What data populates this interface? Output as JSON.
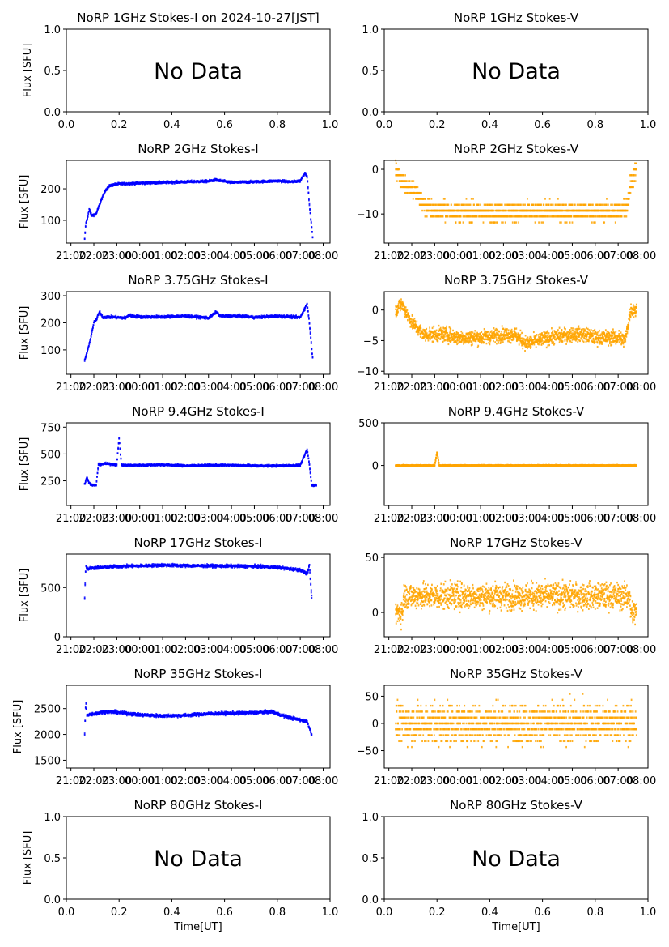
{
  "chart_data": {
    "type": "scatter",
    "figure": "NoRP daily quick-look",
    "date_label": "2024-10-27[JST]",
    "colors": {
      "stokes_i": "#0000ff",
      "stokes_v": "#ffa500",
      "axes": "#000000"
    },
    "time_ticks": [
      "21:00",
      "22:00",
      "23:00",
      "00:00",
      "01:00",
      "02:00",
      "03:00",
      "04:00",
      "05:00",
      "06:00",
      "07:00",
      "08:00"
    ],
    "time_range_hours": [
      -3.2,
      8.3
    ],
    "xlabel": "Time[UT]",
    "ylabel": "Flux [SFU]",
    "panels": [
      {
        "row": 0,
        "col": 0,
        "title": "NoRP 1GHz Stokes-I on 2024-10-27[JST]",
        "kind": "I",
        "nodata": true,
        "nodata_text": "No Data",
        "ylim": [
          0,
          1
        ],
        "yticks": [
          "0.0",
          "0.5",
          "1.0"
        ],
        "xticks": [
          "0.0",
          "0.2",
          "0.4",
          "0.6",
          "0.8",
          "1.0"
        ],
        "ylabel": "Flux [SFU]"
      },
      {
        "row": 0,
        "col": 1,
        "title": "NoRP 1GHz Stokes-V",
        "kind": "V",
        "nodata": true,
        "nodata_text": "No Data",
        "ylim": [
          0,
          1
        ],
        "yticks": [
          "0.0",
          "0.5",
          "1.0"
        ],
        "xticks": [
          "0.0",
          "0.2",
          "0.4",
          "0.6",
          "0.8",
          "1.0"
        ]
      },
      {
        "row": 1,
        "col": 0,
        "title": "NoRP 2GHz Stokes-I",
        "kind": "I",
        "ylim": [
          28,
          290
        ],
        "yticks": [
          "100",
          "200"
        ],
        "ytick_values": [
          100,
          200
        ],
        "ylabel": "Flux [SFU]",
        "t": [
          -2.4,
          -2.35,
          -2.3,
          -2.2,
          -2.1,
          -1.9,
          -1.7,
          -1.5,
          -1.3,
          -1.0,
          0,
          1,
          2,
          3,
          3.3,
          4,
          5,
          6,
          6.6,
          7.0,
          7.2,
          7.3,
          7.4,
          7.55
        ],
        "y": [
          40,
          90,
          100,
          135,
          115,
          120,
          160,
          195,
          210,
          215,
          218,
          220,
          222,
          224,
          228,
          220,
          222,
          225,
          222,
          225,
          250,
          240,
          150,
          40
        ],
        "spread": 6
      },
      {
        "row": 1,
        "col": 1,
        "title": "NoRP 2GHz Stokes-V",
        "kind": "V",
        "ylim": [
          -16.5,
          2
        ],
        "yticks": [
          "−10",
          "0"
        ],
        "ytick_values": [
          -10,
          0
        ],
        "t": [
          -2.7,
          -2.4,
          -2.0,
          -1.6,
          -1.2,
          0,
          2,
          4,
          6,
          7.0,
          7.4,
          7.55,
          7.8
        ],
        "y": [
          0,
          -3,
          -4,
          -7,
          -9,
          -9.5,
          -9.5,
          -9.5,
          -9.5,
          -9.5,
          -8,
          -3,
          0
        ],
        "spread": 3.5,
        "banded": true
      },
      {
        "row": 2,
        "col": 0,
        "title": "NoRP 3.75GHz Stokes-I",
        "kind": "I",
        "ylim": [
          10,
          315
        ],
        "yticks": [
          "100",
          "200",
          "300"
        ],
        "ytick_values": [
          100,
          200,
          300
        ],
        "ylabel": "Flux [SFU]",
        "t": [
          -2.4,
          -2.2,
          -2.0,
          -1.9,
          -1.75,
          -1.6,
          -1.4,
          -0.6,
          -0.5,
          0,
          1,
          2,
          3,
          3.35,
          3.5,
          4.4,
          5,
          6,
          7.0,
          7.3,
          7.4,
          7.55
        ],
        "y": [
          60,
          120,
          200,
          210,
          240,
          220,
          222,
          218,
          228,
          222,
          222,
          225,
          218,
          240,
          225,
          225,
          220,
          225,
          220,
          270,
          200,
          60
        ],
        "spread": 8
      },
      {
        "row": 2,
        "col": 1,
        "title": "NoRP 3.75GHz Stokes-V",
        "kind": "V",
        "ylim": [
          -10.5,
          3
        ],
        "yticks": [
          "−10",
          "−5",
          "0"
        ],
        "ytick_values": [
          -10,
          -5,
          0
        ],
        "t": [
          -2.7,
          -2.45,
          -2.3,
          -2.0,
          -1.5,
          -0.5,
          0,
          1,
          2,
          2.5,
          3.0,
          3.5,
          4,
          5,
          5.5,
          6,
          7,
          7.3,
          7.55,
          7.8
        ],
        "y": [
          0,
          1,
          0,
          -2,
          -4,
          -4,
          -4.5,
          -4.5,
          -4,
          -4,
          -5.5,
          -5,
          -4.5,
          -4,
          -4,
          -4.5,
          -4.5,
          -5,
          0,
          0
        ],
        "spread": 2
      },
      {
        "row": 3,
        "col": 0,
        "title": "NoRP 9.4GHz Stokes-I",
        "kind": "I",
        "ylim": [
          20,
          790
        ],
        "yticks": [
          "250",
          "500",
          "750"
        ],
        "ytick_values": [
          250,
          500,
          750
        ],
        "ylabel": "Flux [SFU]",
        "t": [
          -2.4,
          -2.3,
          -2.2,
          -2.1,
          -1.9,
          -1.8,
          -1.5,
          -1.0,
          -0.9,
          -0.8,
          -0.7,
          0,
          1,
          2,
          3,
          4,
          5,
          6,
          7,
          7.3,
          7.4,
          7.5,
          7.7
        ],
        "y": [
          220,
          280,
          230,
          210,
          210,
          400,
          410,
          400,
          650,
          400,
          395,
          395,
          400,
          390,
          395,
          395,
          390,
          390,
          395,
          540,
          400,
          210,
          210
        ],
        "spread": 15
      },
      {
        "row": 3,
        "col": 1,
        "title": "NoRP 9.4GHz Stokes-V",
        "kind": "V",
        "ylim": [
          -470,
          500
        ],
        "yticks": [
          "0",
          "500"
        ],
        "ytick_values": [
          0,
          500
        ],
        "t": [
          -2.7,
          -1,
          -0.9,
          -0.8,
          0,
          2,
          4,
          6,
          7.8
        ],
        "y": [
          0,
          0,
          150,
          0,
          0,
          0,
          0,
          0,
          0
        ],
        "spread": 10
      },
      {
        "row": 4,
        "col": 0,
        "title": "NoRP 17GHz Stokes-I",
        "kind": "I",
        "ylim": [
          0,
          840
        ],
        "yticks": [
          "0",
          "500"
        ],
        "ytick_values": [
          0,
          500
        ],
        "ylabel": "Flux [SFU]",
        "t": [
          -2.4,
          -2.35,
          -2.3,
          -2.0,
          -1,
          0,
          1,
          2,
          3,
          4,
          5,
          6,
          6.5,
          7,
          7.3,
          7.4,
          7.5
        ],
        "y": [
          400,
          730,
          690,
          700,
          715,
          720,
          728,
          722,
          720,
          718,
          715,
          705,
          690,
          680,
          640,
          720,
          400
        ],
        "spread": 25
      },
      {
        "row": 4,
        "col": 1,
        "title": "NoRP 17GHz Stokes-V",
        "kind": "V",
        "ylim": [
          -22,
          53
        ],
        "yticks": [
          "0",
          "50"
        ],
        "ytick_values": [
          0,
          50
        ],
        "t": [
          -2.7,
          -2.4,
          -2.35,
          0,
          2,
          4,
          6,
          7.5,
          7.55,
          7.8
        ],
        "y": [
          0,
          0,
          15,
          15,
          15,
          15,
          15,
          15,
          0,
          0
        ],
        "spread": 20
      },
      {
        "row": 5,
        "col": 0,
        "title": "NoRP 35GHz Stokes-I",
        "kind": "I",
        "ylim": [
          1350,
          2950
        ],
        "yticks": [
          "1500",
          "2000",
          "2500"
        ],
        "ytick_values": [
          1500,
          2000,
          2500
        ],
        "ylabel": "Flux [SFU]",
        "t": [
          -2.4,
          -2.35,
          -2.3,
          -2.0,
          -1.5,
          -1,
          0,
          1,
          2,
          3,
          4,
          5,
          5.8,
          6.0,
          6.5,
          7.0,
          7.3,
          7.5
        ],
        "y": [
          2000,
          2650,
          2380,
          2400,
          2440,
          2430,
          2380,
          2360,
          2370,
          2400,
          2410,
          2420,
          2440,
          2400,
          2330,
          2280,
          2250,
          2000
        ],
        "spread": 50
      },
      {
        "row": 5,
        "col": 1,
        "title": "NoRP 35GHz Stokes-V",
        "kind": "V",
        "ylim": [
          -82,
          70
        ],
        "yticks": [
          "−50",
          "0",
          "50"
        ],
        "ytick_values": [
          -50,
          0,
          50
        ],
        "t": [
          -2.7,
          -2.4,
          0,
          4,
          7.5,
          7.8
        ],
        "y": [
          0,
          0,
          0,
          0,
          0,
          0
        ],
        "spread": 60,
        "banded": true
      },
      {
        "row": 6,
        "col": 0,
        "title": "NoRP 80GHz Stokes-I",
        "kind": "I",
        "nodata": true,
        "nodata_text": "No Data",
        "ylim": [
          0,
          1
        ],
        "yticks": [
          "0.0",
          "0.5",
          "1.0"
        ],
        "xticks": [
          "0.0",
          "0.2",
          "0.4",
          "0.6",
          "0.8",
          "1.0"
        ],
        "ylabel": "Flux [SFU]",
        "xlabel": "Time[UT]"
      },
      {
        "row": 6,
        "col": 1,
        "title": "NoRP 80GHz Stokes-V",
        "kind": "V",
        "nodata": true,
        "nodata_text": "No Data",
        "ylim": [
          0,
          1
        ],
        "yticks": [
          "0.0",
          "0.5",
          "1.0"
        ],
        "xticks": [
          "0.0",
          "0.2",
          "0.4",
          "0.6",
          "0.8",
          "1.0"
        ],
        "xlabel": "Time[UT]"
      }
    ]
  }
}
